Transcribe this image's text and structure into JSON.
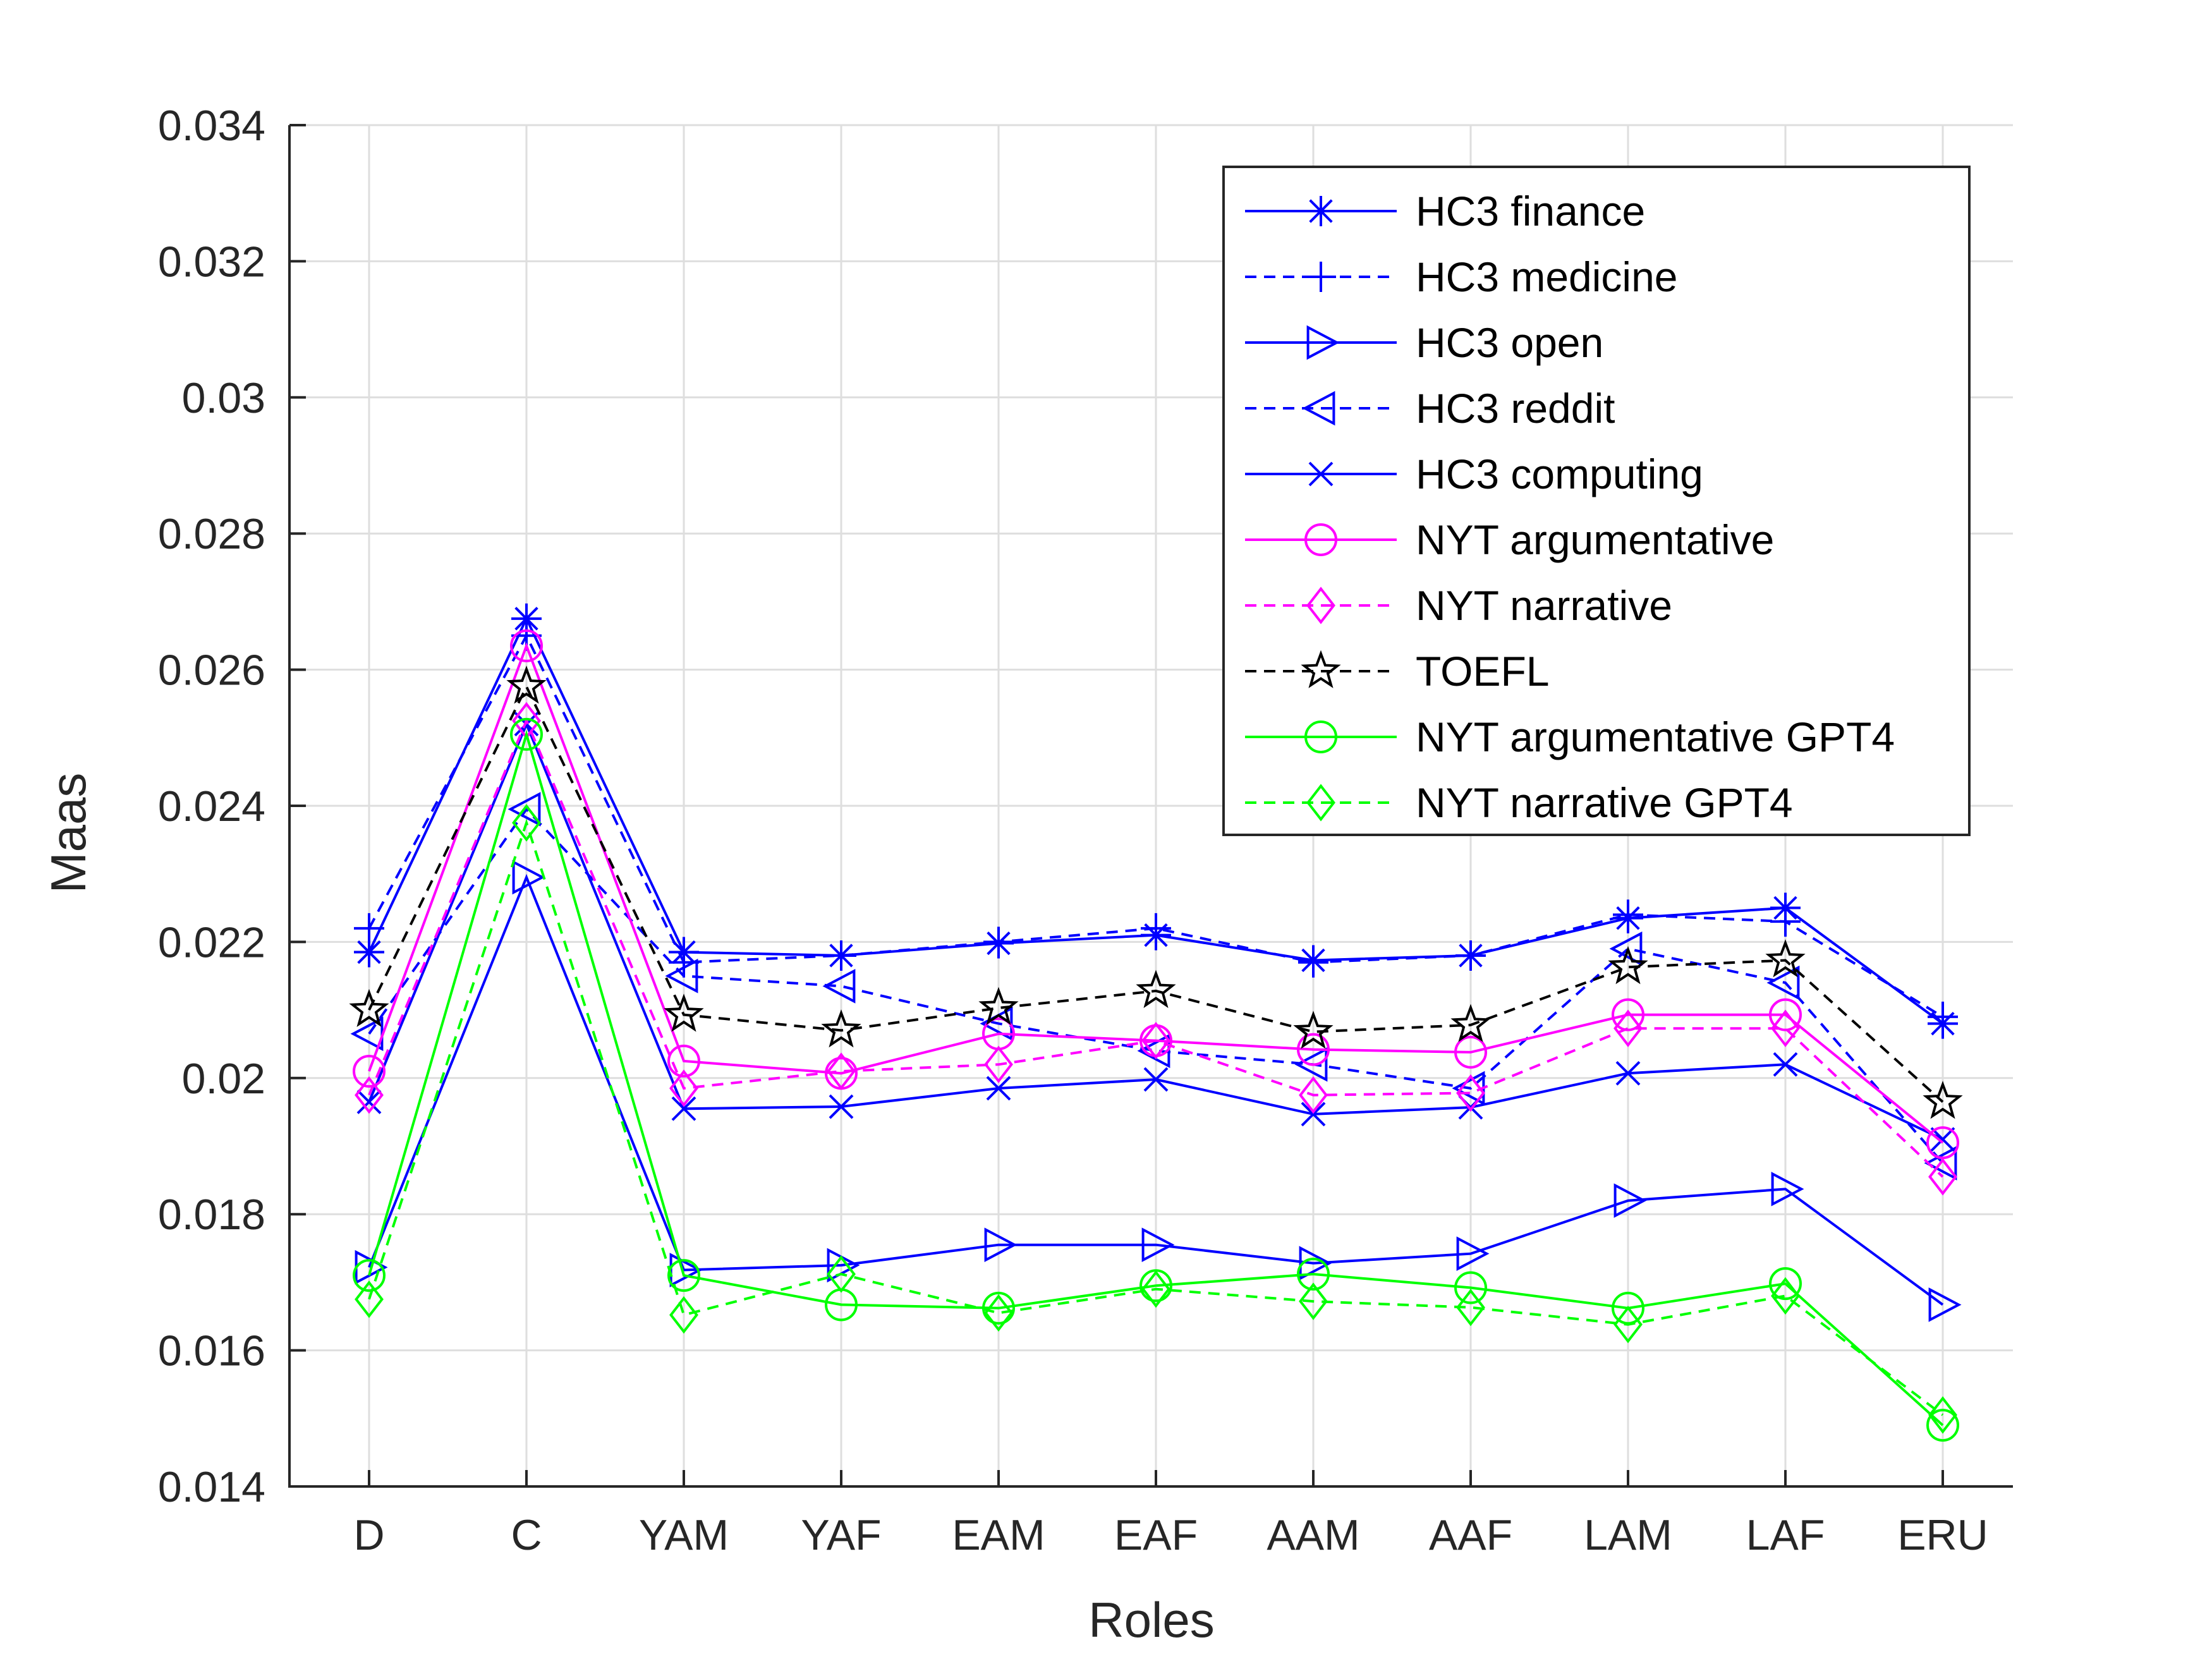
{
  "chart_data": {
    "type": "line",
    "title": "",
    "xlabel": "Roles",
    "ylabel": "Maas",
    "ylim": [
      0.014,
      0.034
    ],
    "yticks": [
      "0.014",
      "0.016",
      "0.018",
      "0.02",
      "0.022",
      "0.024",
      "0.026",
      "0.028",
      "0.03",
      "0.032",
      "0.034"
    ],
    "categories": [
      "D",
      "C",
      "YAM",
      "YAF",
      "EAM",
      "EAF",
      "AAM",
      "AAF",
      "LAM",
      "LAF",
      "ERU"
    ],
    "grid": true,
    "legend_position": "top-right",
    "series": [
      {
        "name": "HC3 finance",
        "color": "#0000ff",
        "dash": "solid",
        "marker": "asterisk",
        "values": [
          0.02185,
          0.02675,
          0.02185,
          0.0218,
          0.02198,
          0.0221,
          0.02173,
          0.0218,
          0.02235,
          0.0225,
          0.0208
        ]
      },
      {
        "name": "HC3 medicine",
        "color": "#0000ff",
        "dash": "dashed",
        "marker": "plus",
        "values": [
          0.0222,
          0.0265,
          0.0217,
          0.0218,
          0.022,
          0.0222,
          0.0217,
          0.0218,
          0.0224,
          0.0223,
          0.0209
        ]
      },
      {
        "name": "HC3 open",
        "color": "#0000ff",
        "dash": "solid",
        "marker": "triangle-right",
        "values": [
          0.01722,
          0.02295,
          0.01718,
          0.01725,
          0.01755,
          0.01755,
          0.01728,
          0.01742,
          0.0182,
          0.01837,
          0.01667
        ]
      },
      {
        "name": "HC3 reddit",
        "color": "#0000ff",
        "dash": "dashed",
        "marker": "triangle-left",
        "values": [
          0.02065,
          0.02395,
          0.0215,
          0.02135,
          0.0208,
          0.0204,
          0.0202,
          0.01985,
          0.0219,
          0.0214,
          0.01875
        ]
      },
      {
        "name": "HC3 computing",
        "color": "#0000ff",
        "dash": "solid",
        "marker": "x",
        "values": [
          0.01965,
          0.0252,
          0.01955,
          0.01958,
          0.01985,
          0.01998,
          0.01947,
          0.01957,
          0.02007,
          0.0202,
          0.0191
        ]
      },
      {
        "name": "NYT argumentative",
        "color": "#ff00ff",
        "dash": "solid",
        "marker": "circle",
        "values": [
          0.0201,
          0.02635,
          0.02025,
          0.02007,
          0.02065,
          0.02055,
          0.02042,
          0.02038,
          0.02093,
          0.02093,
          0.01905
        ]
      },
      {
        "name": "NYT narrative",
        "color": "#ff00ff",
        "dash": "dashed",
        "marker": "diamond",
        "values": [
          0.01975,
          0.02525,
          0.01985,
          0.0201,
          0.0202,
          0.02055,
          0.01975,
          0.01978,
          0.02073,
          0.02073,
          0.01855
        ]
      },
      {
        "name": "TOEFL",
        "color": "#000000",
        "dash": "dashed",
        "marker": "star",
        "values": [
          0.021,
          0.02575,
          0.02093,
          0.0207,
          0.02103,
          0.02128,
          0.02068,
          0.02078,
          0.02163,
          0.02173,
          0.01965
        ]
      },
      {
        "name": "NYT argumentative GPT4",
        "color": "#00ff00",
        "dash": "solid",
        "marker": "circle",
        "values": [
          0.0171,
          0.02505,
          0.0171,
          0.01667,
          0.01662,
          0.01695,
          0.01712,
          0.01692,
          0.01662,
          0.01698,
          0.0149
        ]
      },
      {
        "name": "NYT narrative GPT4",
        "color": "#00ff00",
        "dash": "dashed",
        "marker": "diamond",
        "values": [
          0.01675,
          0.02375,
          0.01652,
          0.01712,
          0.01655,
          0.0169,
          0.01672,
          0.01663,
          0.01638,
          0.0168,
          0.01505
        ]
      }
    ]
  }
}
